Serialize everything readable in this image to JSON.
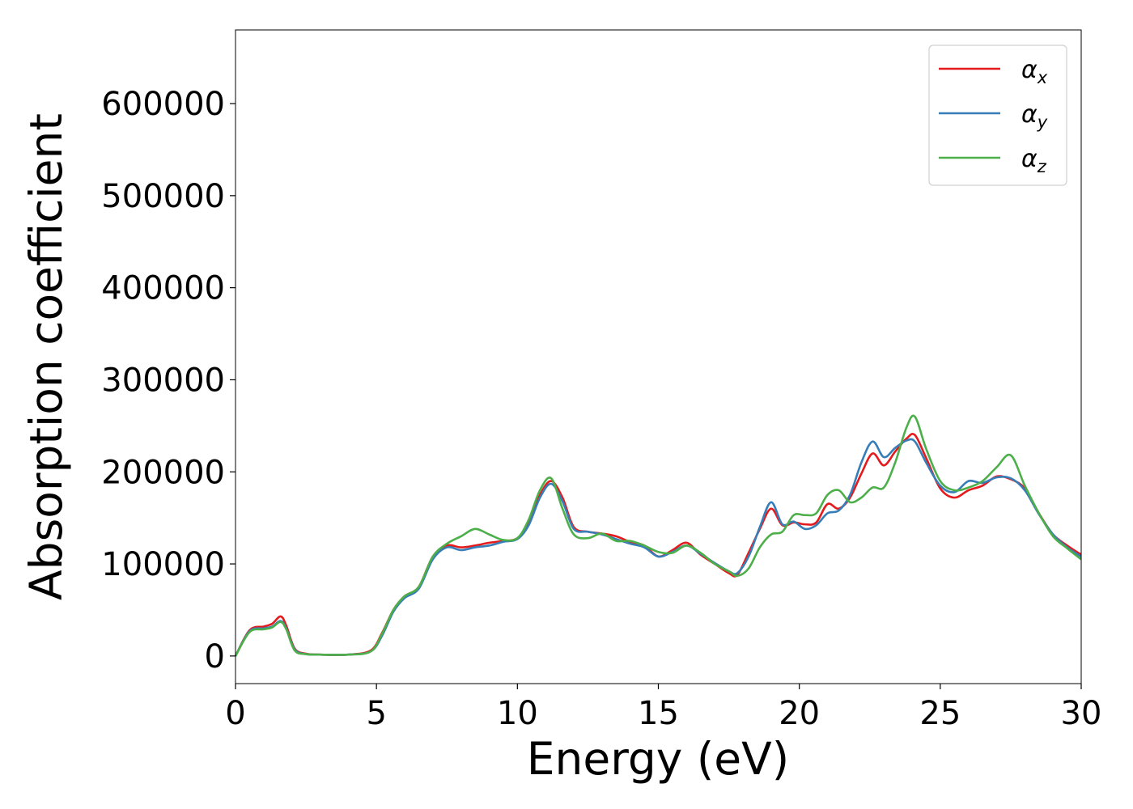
{
  "chart_data": {
    "type": "line",
    "xlabel": "Energy (eV)",
    "ylabel": "Absorption coefficient",
    "xlim": [
      0,
      30
    ],
    "ylim": [
      -30000,
      680000
    ],
    "xticks": [
      0,
      5,
      10,
      15,
      20,
      25,
      30
    ],
    "xtick_labels": [
      "0",
      "5",
      "10",
      "15",
      "20",
      "25",
      "30"
    ],
    "yticks": [
      0,
      100000,
      200000,
      300000,
      400000,
      500000,
      600000
    ],
    "ytick_labels": [
      "0",
      "100000",
      "200000",
      "300000",
      "400000",
      "500000",
      "600000"
    ],
    "grid": false,
    "legend_position": "top-right",
    "series": [
      {
        "name": "α",
        "subscript": "x",
        "color": "#e41a1c",
        "x": [
          0,
          0.5,
          1.0,
          1.3,
          1.6,
          1.8,
          2.1,
          2.5,
          3.0,
          4.0,
          4.8,
          5.2,
          5.6,
          6.0,
          6.5,
          7.0,
          7.5,
          8.0,
          8.5,
          9.0,
          9.5,
          10.0,
          10.4,
          10.8,
          11.2,
          11.6,
          12.0,
          12.5,
          13.0,
          13.5,
          14.0,
          14.5,
          15.0,
          15.5,
          16.0,
          16.5,
          17.0,
          17.5,
          17.8,
          18.2,
          18.6,
          19.0,
          19.4,
          19.8,
          20.2,
          20.6,
          21.0,
          21.4,
          21.8,
          22.2,
          22.6,
          23.0,
          23.4,
          23.8,
          24.1,
          24.5,
          25.0,
          25.5,
          26.0,
          26.5,
          27.0,
          27.5,
          28.0,
          28.5,
          29.0,
          29.5,
          30.0
        ],
        "y": [
          0,
          28000,
          32000,
          35000,
          43000,
          33000,
          8000,
          2500,
          1500,
          1500,
          6000,
          25000,
          50000,
          65000,
          75000,
          108000,
          120000,
          118000,
          120000,
          123000,
          125000,
          128000,
          145000,
          175000,
          190000,
          172000,
          140000,
          135000,
          133000,
          130000,
          124000,
          120000,
          108000,
          115000,
          123000,
          110000,
          100000,
          90000,
          88000,
          112000,
          138000,
          160000,
          142000,
          145000,
          143000,
          145000,
          165000,
          160000,
          172000,
          198000,
          220000,
          207000,
          222000,
          236000,
          240000,
          215000,
          182000,
          172000,
          180000,
          185000,
          195000,
          192000,
          182000,
          155000,
          132000,
          120000,
          110000
        ]
      },
      {
        "name": "α",
        "subscript": "y",
        "color": "#377eb8",
        "x": [
          0,
          0.5,
          1.0,
          1.3,
          1.6,
          1.8,
          2.1,
          2.5,
          3.0,
          4.0,
          4.8,
          5.2,
          5.6,
          6.0,
          6.5,
          7.0,
          7.5,
          8.0,
          8.5,
          9.0,
          9.5,
          10.0,
          10.4,
          10.8,
          11.2,
          11.6,
          12.0,
          12.5,
          13.0,
          13.5,
          14.0,
          14.5,
          15.0,
          15.5,
          16.0,
          16.5,
          17.0,
          17.5,
          17.8,
          18.2,
          18.6,
          19.0,
          19.4,
          19.8,
          20.2,
          20.6,
          21.0,
          21.4,
          21.8,
          22.2,
          22.6,
          23.0,
          23.4,
          23.8,
          24.1,
          24.5,
          25.0,
          25.5,
          26.0,
          26.5,
          27.0,
          27.5,
          28.0,
          28.5,
          29.0,
          29.5,
          30.0
        ],
        "y": [
          0,
          27000,
          30000,
          32000,
          38000,
          30000,
          7000,
          2000,
          1500,
          1500,
          5000,
          22000,
          48000,
          63000,
          73000,
          105000,
          118000,
          115000,
          118000,
          120000,
          124000,
          127000,
          142000,
          172000,
          187000,
          168000,
          138000,
          135000,
          132000,
          127000,
          122000,
          118000,
          108000,
          113000,
          120000,
          111000,
          101000,
          92000,
          90000,
          108000,
          140000,
          167000,
          143000,
          146000,
          138000,
          142000,
          155000,
          158000,
          175000,
          210000,
          233000,
          216000,
          226000,
          234000,
          233000,
          210000,
          185000,
          178000,
          190000,
          188000,
          194000,
          193000,
          180000,
          154000,
          132000,
          118000,
          108000
        ]
      },
      {
        "name": "α",
        "subscript": "z",
        "color": "#4daf4a",
        "x": [
          0,
          0.5,
          1.0,
          1.3,
          1.6,
          1.8,
          2.1,
          2.5,
          3.0,
          4.0,
          4.8,
          5.2,
          5.6,
          6.0,
          6.5,
          7.0,
          7.5,
          8.0,
          8.5,
          9.0,
          9.5,
          10.0,
          10.4,
          10.8,
          11.2,
          11.6,
          12.0,
          12.5,
          13.0,
          13.5,
          14.0,
          14.5,
          15.0,
          15.5,
          16.0,
          16.5,
          17.0,
          17.5,
          17.8,
          18.2,
          18.6,
          19.0,
          19.4,
          19.8,
          20.2,
          20.6,
          21.0,
          21.4,
          21.8,
          22.2,
          22.6,
          23.0,
          23.4,
          23.8,
          24.1,
          24.5,
          25.0,
          25.5,
          26.0,
          26.5,
          27.0,
          27.5,
          28.0,
          28.5,
          29.0,
          29.5,
          30.0
        ],
        "y": [
          0,
          26000,
          29000,
          31000,
          37000,
          29000,
          6000,
          2000,
          1500,
          1500,
          5000,
          24000,
          50000,
          65000,
          75000,
          108000,
          122000,
          130000,
          138000,
          132000,
          126000,
          128000,
          148000,
          180000,
          193000,
          160000,
          132000,
          128000,
          133000,
          125000,
          125000,
          120000,
          113000,
          112000,
          120000,
          112000,
          100000,
          92000,
          87000,
          95000,
          118000,
          132000,
          135000,
          153000,
          153000,
          155000,
          175000,
          180000,
          167000,
          172000,
          183000,
          183000,
          210000,
          248000,
          260000,
          225000,
          190000,
          180000,
          183000,
          190000,
          205000,
          218000,
          185000,
          155000,
          130000,
          117000,
          105000
        ]
      }
    ]
  }
}
